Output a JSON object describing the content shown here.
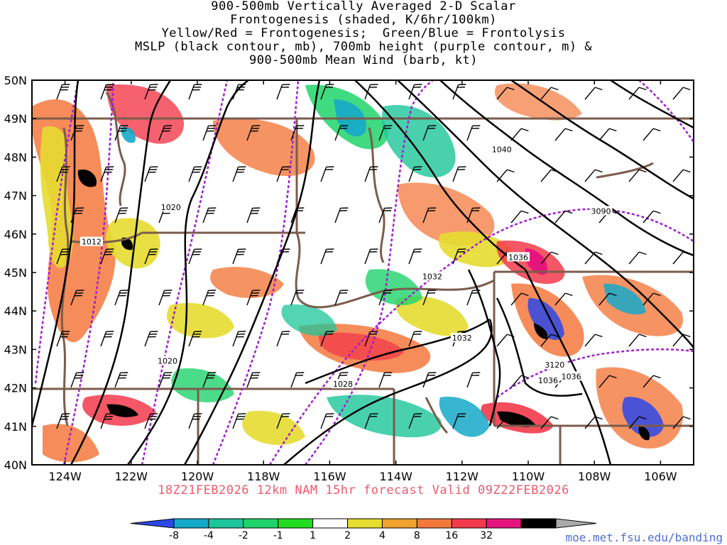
{
  "title_lines": [
    "900-500mb Vertically Averaged 2-D Scalar",
    "Frontogenesis (shaded, K/6hr/100km)",
    "Yellow/Red = Frontogenesis;  Green/Blue = Frontolysis",
    "MSLP (black contour, mb), 700mb height (purple contour, m) &",
    "900-500mb Mean Wind (barb, kt)"
  ],
  "lat_labels": [
    "50N",
    "49N",
    "48N",
    "47N",
    "46N",
    "45N",
    "44N",
    "43N",
    "42N",
    "41N",
    "40N"
  ],
  "lon_labels": [
    "124W",
    "122W",
    "120W",
    "118W",
    "116W",
    "114W",
    "112W",
    "110W",
    "108W",
    "106W"
  ],
  "contour_labels": {
    "mslp": [
      {
        "text": "1040",
        "lon": -110.8,
        "lat": 48.2
      },
      {
        "text": "1020",
        "lon": -120.8,
        "lat": 46.7
      },
      {
        "text": "1012",
        "lon": -123.2,
        "lat": 45.8
      },
      {
        "text": "1036",
        "lon": -110.3,
        "lat": 45.4
      },
      {
        "text": "1032",
        "lon": -112.9,
        "lat": 44.9
      },
      {
        "text": "1032",
        "lon": -112.0,
        "lat": 43.3
      },
      {
        "text": "1020",
        "lon": -120.9,
        "lat": 42.7
      },
      {
        "text": "1028",
        "lon": -115.6,
        "lat": 42.1
      },
      {
        "text": "1036",
        "lon": -108.7,
        "lat": 42.3
      },
      {
        "text": "1036",
        "lon": -109.4,
        "lat": 42.2
      }
    ],
    "height": [
      {
        "text": "3090",
        "lon": -107.8,
        "lat": 46.6
      },
      {
        "text": "3120",
        "lon": -109.2,
        "lat": 42.6
      }
    ]
  },
  "forecast_line": "18Z21FEB2026 12km NAM 15hr forecast Valid 09Z22FEB2026",
  "colorbar": {
    "labels": [
      "-8",
      "-4",
      "-2",
      "-1",
      "1",
      "2",
      "4",
      "8",
      "16",
      "32"
    ],
    "colors": [
      "#2b48e8",
      "#15a9c9",
      "#1cc59a",
      "#1fd36b",
      "#22dc22",
      "#ffffff",
      "#e6dc30",
      "#f2a22e",
      "#f4783c",
      "#f23a4a",
      "#e6157e",
      "#000000",
      "#aaaaaa"
    ]
  },
  "colors": {
    "state_border": "#7b5c4c",
    "mslp": "#000000",
    "height": "#a01fcf",
    "footer": "#ee5a6a",
    "credit": "#4f6fd8"
  },
  "credit": "moe.met.fsu.edu/banding"
}
